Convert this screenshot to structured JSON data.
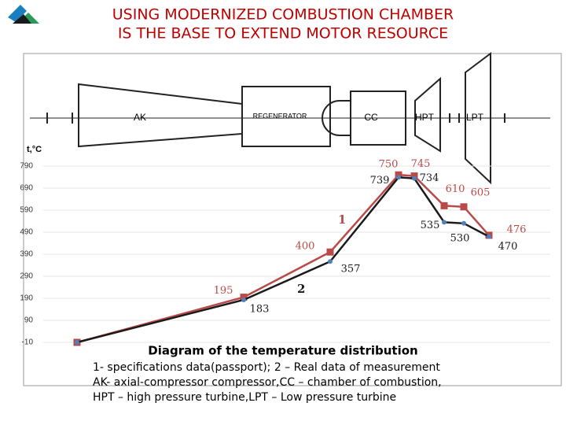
{
  "chart_data": {
    "type": "line",
    "title": [
      "USING MODERNIZED COMBUSTION CHAMBER",
      "IS THE BASE TO EXTEND MOTOR RESOURCE"
    ],
    "y_label": "t,°C",
    "schematic_labels": [
      "AK",
      "REGENERATOR",
      "CC",
      "HPT",
      "LPT"
    ],
    "categories": [
      null,
      null,
      null,
      null,
      null,
      null,
      null,
      null
    ],
    "series": [
      {
        "name": "1",
        "color": "#b94a48",
        "values": [
          -10,
          195,
          400,
          750,
          745,
          610,
          605,
          476
        ]
      },
      {
        "name": "2",
        "color": "#1a1a1a",
        "values": [
          -10,
          183,
          357,
          739,
          734,
          535,
          530,
          470
        ]
      }
    ],
    "ylim": [
      -10,
      790
    ],
    "yticks": [
      -10,
      90,
      190,
      290,
      390,
      490,
      590,
      690,
      790
    ],
    "grid": true,
    "caption": [
      "Diagram of the temperature distribution",
      "1- specifications data(passport);  2 – Real data of measurement",
      "AK-  axial-compressor compressor,CC – chamber of combustion,",
      "HPT – high pressure turbine,LPT – Low pressure turbine"
    ]
  }
}
